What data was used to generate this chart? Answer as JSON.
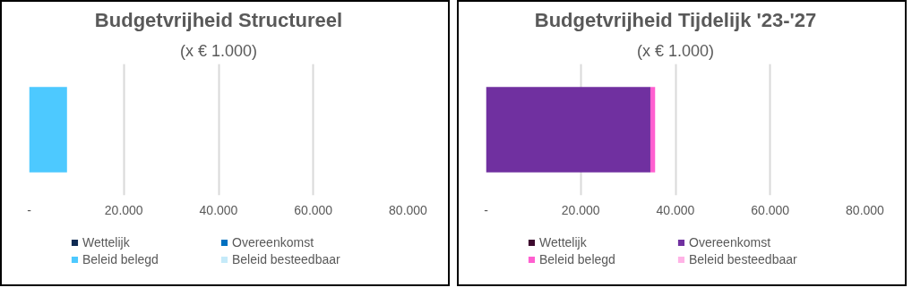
{
  "chart_data": [
    {
      "type": "bar",
      "orientation": "horizontal",
      "stacked": true,
      "title": "Budgetvrijheid Structureel",
      "subtitle": "(x € 1.000)",
      "categories": [
        null
      ],
      "series": [
        {
          "name": "Wettelijk",
          "color": "#0e2a52",
          "values": [
            0
          ]
        },
        {
          "name": "Overeenkomst",
          "color": "#0070c0",
          "values": [
            0
          ]
        },
        {
          "name": "Beleid belegd",
          "color": "#4dc9ff",
          "values": [
            8000
          ]
        },
        {
          "name": "Beleid besteedbaar",
          "color": "#c5eaf9",
          "values": [
            0
          ]
        }
      ],
      "xlim": [
        0,
        80000
      ],
      "xticks": [
        {
          "value": 0,
          "label": "-"
        },
        {
          "value": 20000,
          "label": "20.000"
        },
        {
          "value": 40000,
          "label": "40.000"
        },
        {
          "value": 60000,
          "label": "60.000"
        },
        {
          "value": 80000,
          "label": "80.000"
        }
      ],
      "grid": "x",
      "legend": "bottom",
      "tick_labels": "x"
    },
    {
      "type": "bar",
      "orientation": "horizontal",
      "stacked": true,
      "title": "Budgetvrijheid Tijdelijk '23-'27",
      "subtitle": "(x € 1.000)",
      "categories": [
        null
      ],
      "series": [
        {
          "name": "Wettelijk",
          "color": "#3d0a2e",
          "values": [
            0
          ]
        },
        {
          "name": "Overeenkomst",
          "color": "#7030a0",
          "values": [
            34700
          ]
        },
        {
          "name": "Beleid belegd",
          "color": "#ff5fd0",
          "values": [
            1000
          ]
        },
        {
          "name": "Beleid besteedbaar",
          "color": "#ffb3e6",
          "values": [
            0
          ]
        }
      ],
      "xlim": [
        0,
        80000
      ],
      "xticks": [
        {
          "value": 0,
          "label": "-"
        },
        {
          "value": 20000,
          "label": "20.000"
        },
        {
          "value": 40000,
          "label": "40.000"
        },
        {
          "value": 60000,
          "label": "60.000"
        },
        {
          "value": 80000,
          "label": "80.000"
        }
      ],
      "grid": "x",
      "legend": "bottom",
      "tick_labels": "x"
    }
  ]
}
